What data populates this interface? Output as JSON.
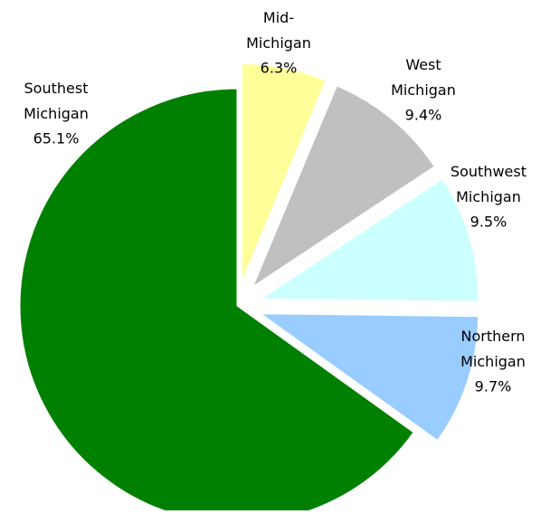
{
  "chart_data": {
    "type": "pie",
    "categories": [
      "Mid-Michigan",
      "West Michigan",
      "Southwest Michigan",
      "Northern Michigan",
      "Southest Michigan"
    ],
    "values": [
      6.3,
      9.4,
      9.5,
      9.7,
      65.1
    ],
    "value_labels": [
      "6.3%",
      "9.4%",
      "9.5%",
      "9.7%",
      "65.1%"
    ],
    "colors": [
      "#ffff99",
      "#c0c0c0",
      "#ccffff",
      "#99ccff",
      "#008000"
    ],
    "exploded": [
      true,
      true,
      true,
      true,
      false
    ]
  }
}
